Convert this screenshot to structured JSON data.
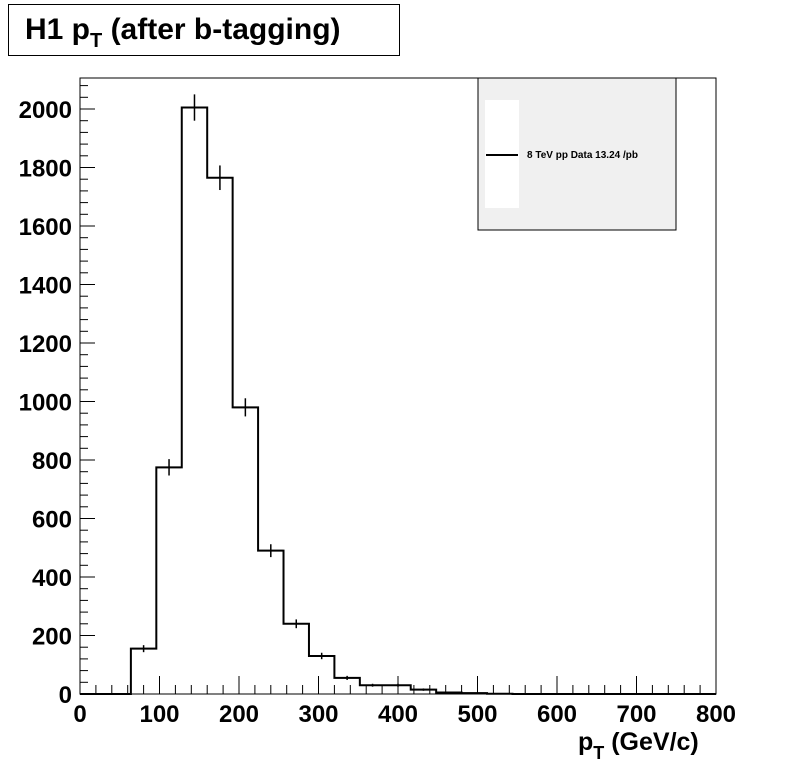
{
  "title": {
    "main": "H1 p",
    "sub": "T",
    "rest": " (after b-tagging)"
  },
  "xlabel": {
    "main": "p",
    "sub": "T",
    "rest": " (GeV/c)"
  },
  "legend": {
    "label": "8 TeV pp Data 13.24 /pb"
  },
  "colors": {
    "line": "#000000",
    "legend_fill": "#f0f0f0",
    "frame": "#000000"
  },
  "chart_data": {
    "type": "histogram",
    "title": "H1 pT (after b-tagging)",
    "xlabel": "pT (GeV/c)",
    "ylabel": "",
    "xlim": [
      0,
      800
    ],
    "ylim": [
      0,
      2100
    ],
    "grid": false,
    "legend_position": "top-right",
    "x_ticks": [
      "0",
      "100",
      "200",
      "300",
      "400",
      "500",
      "600",
      "700",
      "800"
    ],
    "y_ticks": [
      "0",
      "200",
      "400",
      "600",
      "800",
      "1000",
      "1200",
      "1400",
      "1600",
      "1800",
      "2000"
    ],
    "bin_edges": [
      0,
      32,
      64,
      96,
      128,
      160,
      192,
      224,
      256,
      288,
      320,
      352,
      384,
      416,
      448,
      480,
      512,
      544,
      576,
      608,
      640,
      672,
      704,
      736,
      768,
      800
    ],
    "series": [
      {
        "name": "8 TeV pp Data 13.24 /pb",
        "values": [
          0,
          0,
          155,
          775,
          2005,
          1765,
          980,
          490,
          240,
          130,
          55,
          30,
          30,
          15,
          5,
          3,
          1,
          0,
          0,
          0,
          0,
          0,
          0,
          0,
          0
        ],
        "errors": [
          0,
          0,
          12,
          28,
          45,
          42,
          31,
          22,
          15,
          11,
          7,
          5,
          5,
          4,
          2,
          2,
          1,
          0,
          0,
          0,
          0,
          0,
          0,
          0,
          0
        ]
      }
    ]
  }
}
